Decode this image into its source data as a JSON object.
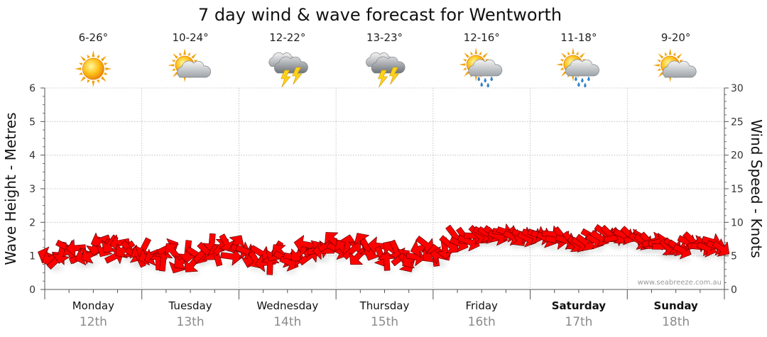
{
  "chart_data": {
    "type": "line",
    "title": "7 day wind & wave forecast for Wentworth",
    "ylabel_left": "Wave Height - Metres",
    "ylabel_right": "Wind Speed - Knots",
    "ylim_left": [
      0,
      6
    ],
    "ylim_right": [
      0,
      30
    ],
    "yticks_left": [
      "0",
      "1",
      "2",
      "3",
      "4",
      "5",
      "6"
    ],
    "yticks_right": [
      "0",
      "5",
      "10",
      "15",
      "20",
      "25",
      "30"
    ],
    "grid": true,
    "credit": "www.seabreeze.com.au",
    "days": [
      {
        "name": "Monday",
        "date": "12th",
        "temp": "6-26°",
        "icon": "sunny-icon",
        "bold": false
      },
      {
        "name": "Tuesday",
        "date": "13th",
        "temp": "10-24°",
        "icon": "sun-cloud-icon",
        "bold": false
      },
      {
        "name": "Wednesday",
        "date": "14th",
        "temp": "12-22°",
        "icon": "thunderstorm-icon",
        "bold": false
      },
      {
        "name": "Thursday",
        "date": "15th",
        "temp": "13-23°",
        "icon": "thunderstorm-icon",
        "bold": false
      },
      {
        "name": "Friday",
        "date": "16th",
        "temp": "12-16°",
        "icon": "sun-cloud-rain-icon",
        "bold": false
      },
      {
        "name": "Saturday",
        "date": "17th",
        "temp": "11-18°",
        "icon": "sun-cloud-rain-icon",
        "bold": true
      },
      {
        "name": "Sunday",
        "date": "18th",
        "temp": "9-20°",
        "icon": "sun-cloud-icon",
        "bold": true
      }
    ],
    "wind_series": {
      "name": "",
      "x_hours": [
        0,
        6,
        12,
        18,
        24,
        30,
        36,
        42,
        48,
        54,
        60,
        66,
        72,
        78,
        84,
        90,
        96,
        102,
        108,
        114,
        120,
        126,
        132,
        138,
        144,
        150,
        156,
        162,
        168
      ],
      "speed_knots": [
        5,
        6,
        6,
        6,
        5,
        5,
        5,
        6,
        6,
        5,
        5,
        6,
        6,
        6,
        5,
        5,
        6,
        7,
        8,
        8,
        8,
        8,
        7,
        8,
        8,
        7,
        6,
        7,
        6
      ],
      "gust_variation": "high",
      "arrow_color": "#ff0000"
    },
    "wave_series": {
      "name": "",
      "x_hours": [
        0,
        24,
        48,
        72,
        96,
        120,
        144,
        168
      ],
      "height_m": [
        0,
        0,
        0,
        0,
        0,
        0,
        0,
        0
      ]
    }
  }
}
